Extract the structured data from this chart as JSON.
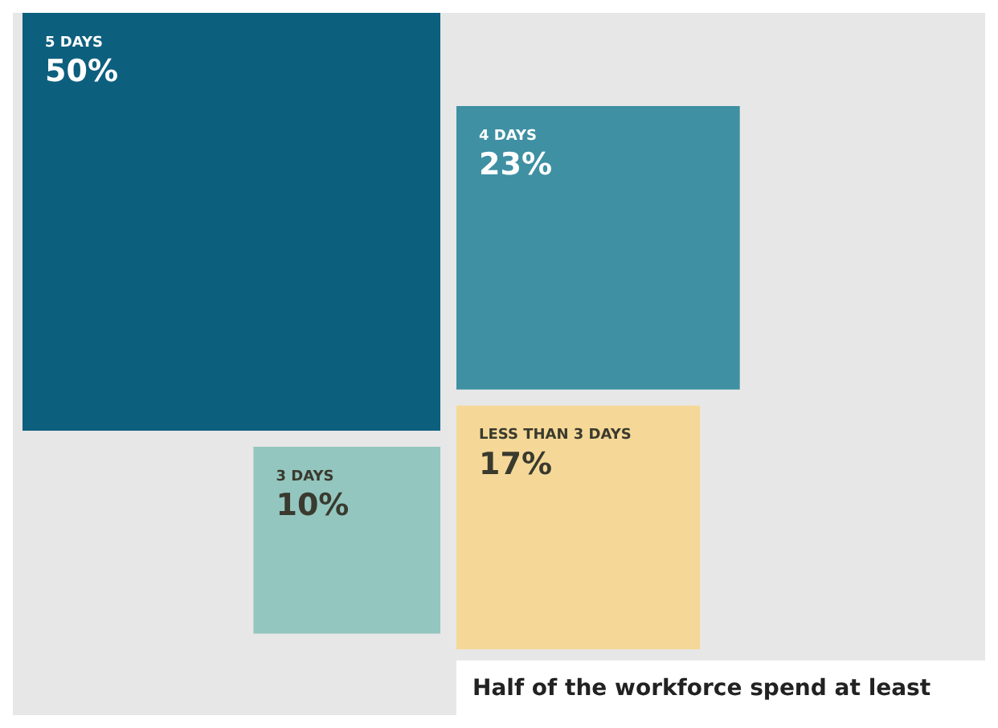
{
  "chart_data": {
    "type": "other",
    "categories": [
      "5 DAYS",
      "4 DAYS",
      "LESS THAN 3 DAYS",
      "3 DAYS"
    ],
    "values": [
      50,
      23,
      17,
      10
    ],
    "value_labels": [
      "50%",
      "23%",
      "17%",
      "10%"
    ],
    "colors": [
      "#0d5f7e",
      "#3e90a2",
      "#f5d897",
      "#93c6bf"
    ],
    "annotations": [
      "Half of the workforce spend at least"
    ]
  }
}
